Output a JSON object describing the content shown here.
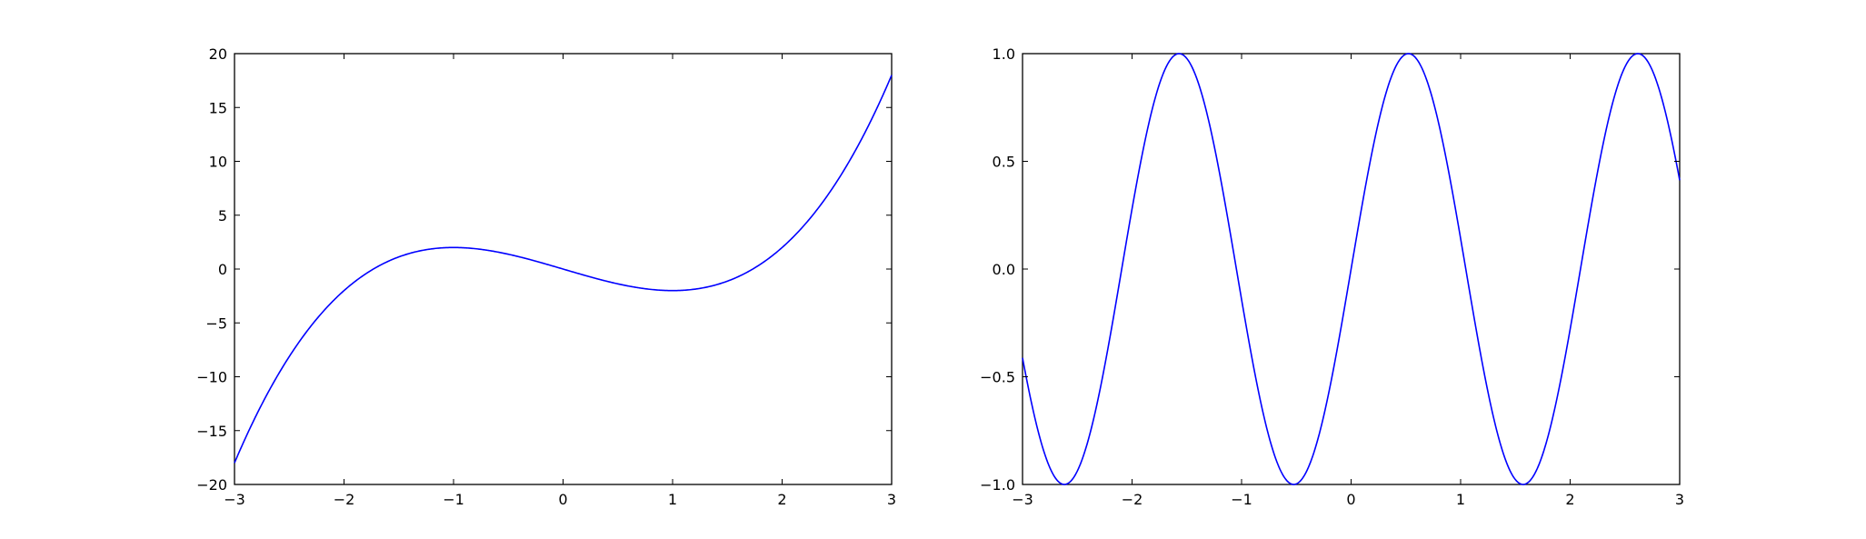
{
  "figure": {
    "background": "#ffffff"
  },
  "chart_data": [
    {
      "type": "line",
      "title": "",
      "xlabel": "",
      "ylabel": "",
      "xlim": [
        -3,
        3
      ],
      "ylim": [
        -20,
        20
      ],
      "grid": false,
      "x_ticks": [
        -3,
        -2,
        -1,
        0,
        1,
        2,
        3
      ],
      "x_tick_labels": [
        "−3",
        "−2",
        "−1",
        "0",
        "1",
        "2",
        "3"
      ],
      "y_ticks": [
        -20,
        -15,
        -10,
        -5,
        0,
        5,
        10,
        15,
        20
      ],
      "y_tick_labels": [
        "−20",
        "−15",
        "−10",
        "−5",
        "0",
        "5",
        "10",
        "15",
        "20"
      ],
      "series": [
        {
          "color": "#0000ff",
          "x": [
            -3,
            -2.75,
            -2.5,
            -2.25,
            -2,
            -1.75,
            -1.5,
            -1.25,
            -1,
            -0.75,
            -0.5,
            -0.25,
            0,
            0.25,
            0.5,
            0.75,
            1,
            1.25,
            1.5,
            1.75,
            2,
            2.25,
            2.5,
            2.75,
            3
          ],
          "y": [
            -18,
            -12.55,
            -8.13,
            -4.64,
            -2,
            -0.11,
            1.13,
            1.8,
            2,
            1.83,
            1.38,
            0.73,
            0,
            -0.73,
            -1.38,
            -1.83,
            -2,
            -1.8,
            -1.13,
            0.11,
            2,
            4.64,
            8.13,
            12.55,
            18
          ]
        }
      ]
    },
    {
      "type": "line",
      "title": "",
      "xlabel": "",
      "ylabel": "",
      "xlim": [
        -3,
        3
      ],
      "ylim": [
        -1,
        1
      ],
      "grid": false,
      "x_ticks": [
        -3,
        -2,
        -1,
        0,
        1,
        2,
        3
      ],
      "x_tick_labels": [
        "−3",
        "−2",
        "−1",
        "0",
        "1",
        "2",
        "3"
      ],
      "y_ticks": [
        -1,
        -0.5,
        0,
        0.5,
        1
      ],
      "y_tick_labels": [
        "−1.0",
        "−0.5",
        "0.0",
        "0.5",
        "1.0"
      ],
      "series": [
        {
          "color": "#0000ff",
          "x": [
            -3,
            -2.75,
            -2.5,
            -2.25,
            -2,
            -1.75,
            -1.5,
            -1.25,
            -1,
            -0.75,
            -0.5,
            -0.25,
            0,
            0.25,
            0.5,
            0.75,
            1,
            1.25,
            1.5,
            1.75,
            2,
            2.25,
            2.5,
            2.75,
            3
          ],
          "y": [
            -0.41,
            -0.88,
            -0.94,
            -0.45,
            0.28,
            0.86,
            0.98,
            0.57,
            -0.14,
            -0.78,
            -1.0,
            -0.68,
            0,
            0.68,
            1.0,
            0.78,
            0.14,
            -0.57,
            -0.98,
            -0.86,
            -0.28,
            0.45,
            0.94,
            0.88,
            0.41
          ]
        }
      ]
    }
  ]
}
